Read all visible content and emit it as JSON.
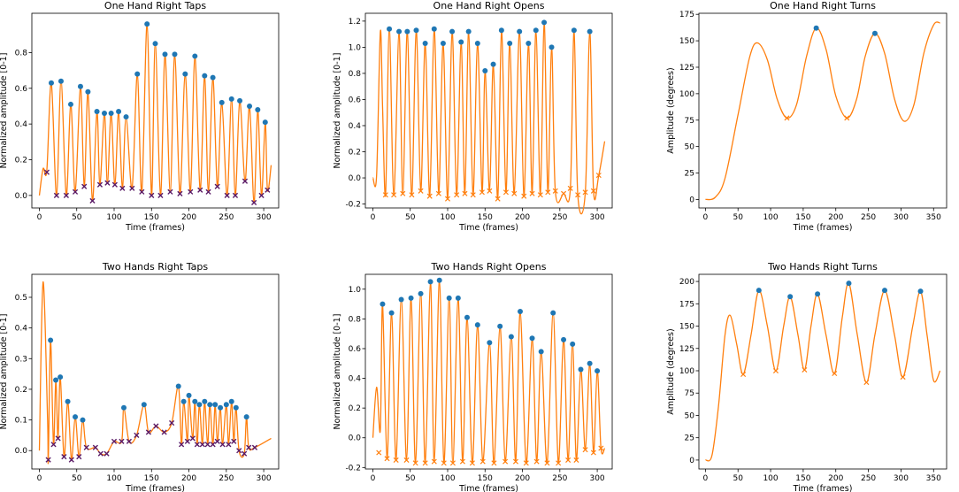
{
  "chart_data": [
    {
      "type": "line",
      "title": "One Hand Right Taps",
      "xlabel": "Time (frames)",
      "ylabel": "Normalized amplitude [0-1]",
      "xlim": [
        -10,
        320
      ],
      "ylim": [
        -0.07,
        1.02
      ],
      "xticks": [
        0,
        50,
        100,
        150,
        200,
        250,
        300
      ],
      "yticks": [
        0.0,
        0.2,
        0.4,
        0.6,
        0.8
      ],
      "ytick_labels": [
        "0.0",
        "0.2",
        "0.4",
        "0.6",
        "0.8"
      ],
      "series": [
        {
          "name": "signal",
          "start": [
            0,
            0.0
          ],
          "end": [
            310,
            0.17
          ],
          "extra_points": [
            [
              5,
              0.15
            ],
            [
              10,
              0.14
            ]
          ]
        }
      ],
      "peaks": {
        "x": [
          16,
          29,
          42,
          55,
          65,
          77,
          87,
          96,
          106,
          116,
          131,
          144,
          155,
          168,
          181,
          195,
          208,
          221,
          232,
          244,
          257,
          268,
          281,
          292,
          302
        ],
        "y": [
          0.63,
          0.64,
          0.51,
          0.61,
          0.58,
          0.47,
          0.46,
          0.46,
          0.47,
          0.44,
          0.68,
          0.96,
          0.85,
          0.79,
          0.79,
          0.68,
          0.78,
          0.67,
          0.66,
          0.52,
          0.54,
          0.53,
          0.5,
          0.48,
          0.41
        ]
      },
      "troughs": {
        "x": [
          10,
          23,
          36,
          48,
          60,
          71,
          81,
          91,
          101,
          111,
          124,
          137,
          150,
          162,
          175,
          188,
          202,
          215,
          226,
          238,
          251,
          262,
          275,
          287,
          297,
          305
        ],
        "y": [
          0.13,
          0.0,
          0.0,
          0.02,
          0.05,
          -0.03,
          0.06,
          0.07,
          0.06,
          0.04,
          0.04,
          0.02,
          0.0,
          0.0,
          0.02,
          0.01,
          0.02,
          0.03,
          0.02,
          0.05,
          0.0,
          0.0,
          0.08,
          -0.04,
          0.0,
          0.03
        ]
      },
      "trough_style": "dark"
    },
    {
      "type": "line",
      "title": "One Hand Right Opens",
      "xlabel": "Time (frames)",
      "ylabel": "Normalized amplitude [0-1]",
      "xlim": [
        -10,
        320
      ],
      "ylim": [
        -0.23,
        1.26
      ],
      "xticks": [
        0,
        50,
        100,
        150,
        200,
        250,
        300
      ],
      "yticks": [
        -0.2,
        0.0,
        0.2,
        0.4,
        0.6,
        0.8,
        1.0,
        1.2
      ],
      "ytick_labels": [
        "-0.2",
        "0.0",
        "0.2",
        "0.4",
        "0.6",
        "0.8",
        "1.0",
        "1.2"
      ],
      "series": [
        {
          "name": "signal",
          "start": [
            0,
            0.0
          ],
          "end": [
            310,
            0.28
          ],
          "extra_points": [
            [
              5,
              0.02
            ],
            [
              10,
              1.12
            ],
            [
              13,
              0.55
            ]
          ]
        }
      ],
      "peaks": {
        "x": [
          22,
          35,
          46,
          58,
          70,
          82,
          94,
          106,
          118,
          128,
          140,
          150,
          161,
          172,
          183,
          196,
          208,
          218,
          229,
          239,
          250,
          259,
          269,
          279,
          290,
          298,
          305
        ],
        "y": [
          1.14,
          1.12,
          1.12,
          1.13,
          1.03,
          1.14,
          1.03,
          1.12,
          1.04,
          1.12,
          1.03,
          0.82,
          0.87,
          1.13,
          1.03,
          1.12,
          1.03,
          1.13,
          1.19,
          1.0,
          0.05,
          0.06,
          1.13,
          0.0,
          1.12,
          -0.1,
          0.02
        ]
      },
      "peak_indices_visible": [
        0,
        1,
        2,
        3,
        4,
        5,
        6,
        7,
        8,
        9,
        10,
        11,
        12,
        13,
        14,
        15,
        16,
        17,
        18,
        19,
        22,
        24
      ],
      "troughs": {
        "x": [
          17,
          28,
          40,
          52,
          64,
          76,
          88,
          100,
          112,
          123,
          134,
          146,
          156,
          167,
          178,
          189,
          202,
          213,
          224,
          234,
          244,
          255,
          264,
          274,
          284,
          295,
          302
        ],
        "y": [
          -0.13,
          -0.13,
          -0.12,
          -0.13,
          -0.1,
          -0.14,
          -0.12,
          -0.16,
          -0.13,
          -0.12,
          -0.13,
          -0.11,
          -0.1,
          -0.16,
          -0.11,
          -0.12,
          -0.14,
          -0.12,
          -0.13,
          -0.11,
          -0.1,
          -0.12,
          -0.08,
          -0.13,
          -0.11,
          -0.1,
          0.02
        ]
      },
      "trough_style": "orange"
    },
    {
      "type": "line",
      "title": "One Hand Right Turns",
      "xlabel": "Time (frames)",
      "ylabel": "Amplitude (degrees)",
      "xlim": [
        -10,
        370
      ],
      "ylim": [
        -8,
        176
      ],
      "xticks": [
        0,
        50,
        100,
        150,
        200,
        250,
        300,
        350
      ],
      "yticks": [
        0,
        25,
        50,
        75,
        100,
        125,
        150,
        175
      ],
      "ytick_labels": [
        "0",
        "25",
        "50",
        "75",
        "100",
        "125",
        "150",
        "175"
      ],
      "series": [
        {
          "name": "signal",
          "knots": [
            [
              0,
              0
            ],
            [
              15,
              2
            ],
            [
              30,
              20
            ],
            [
              50,
              80
            ],
            [
              68,
              135
            ],
            [
              80,
              148
            ],
            [
              95,
              132
            ],
            [
              110,
              95
            ],
            [
              125,
              77
            ],
            [
              140,
              90
            ],
            [
              155,
              135
            ],
            [
              170,
              162
            ],
            [
              185,
              142
            ],
            [
              200,
              98
            ],
            [
              217,
              77
            ],
            [
              232,
              95
            ],
            [
              245,
              135
            ],
            [
              260,
              157
            ],
            [
              275,
              138
            ],
            [
              290,
              95
            ],
            [
              305,
              74
            ],
            [
              320,
              90
            ],
            [
              335,
              138
            ],
            [
              350,
              165
            ],
            [
              360,
              167
            ]
          ]
        }
      ],
      "peaks": {
        "x": [
          170,
          260
        ],
        "y": [
          162,
          157
        ]
      },
      "troughs": {
        "x": [
          125,
          217
        ],
        "y": [
          77,
          77
        ]
      },
      "trough_style": "orange"
    },
    {
      "type": "line",
      "title": "Two Hands Right Taps",
      "xlabel": "Time (frames)",
      "ylabel": "Normalized amplitude [0-1]",
      "xlim": [
        -10,
        320
      ],
      "ylim": [
        -0.06,
        0.575
      ],
      "xticks": [
        0,
        50,
        100,
        150,
        200,
        250,
        300
      ],
      "yticks": [
        0.0,
        0.1,
        0.2,
        0.3,
        0.4,
        0.5
      ],
      "ytick_labels": [
        "0.0",
        "0.1",
        "0.2",
        "0.3",
        "0.4",
        "0.5"
      ],
      "series": [
        {
          "name": "signal",
          "start": [
            0,
            0.0
          ],
          "end": [
            310,
            0.04
          ],
          "extra_points": [
            [
              5,
              0.55
            ],
            [
              11,
              0.1
            ]
          ]
        }
      ],
      "peaks": {
        "x": [
          15,
          22,
          28,
          38,
          48,
          58,
          113,
          140,
          186,
          193,
          200,
          208,
          214,
          221,
          228,
          235,
          242,
          250,
          257,
          263,
          277
        ],
        "y": [
          0.36,
          0.23,
          0.24,
          0.16,
          0.11,
          0.1,
          0.14,
          0.15,
          0.21,
          0.16,
          0.18,
          0.16,
          0.15,
          0.16,
          0.15,
          0.15,
          0.14,
          0.15,
          0.16,
          0.14,
          0.11
        ]
      },
      "troughs": {
        "x": [
          12,
          19,
          25,
          33,
          43,
          53,
          63,
          75,
          82,
          90,
          100,
          110,
          120,
          130,
          146,
          156,
          167,
          177,
          190,
          198,
          205,
          211,
          218,
          225,
          232,
          238,
          245,
          253,
          260,
          267,
          274,
          280,
          288
        ],
        "y": [
          -0.03,
          0.02,
          0.04,
          -0.02,
          -0.03,
          -0.02,
          0.01,
          0.01,
          -0.01,
          -0.01,
          0.03,
          0.03,
          0.03,
          0.05,
          0.06,
          0.08,
          0.06,
          0.09,
          0.02,
          0.03,
          0.04,
          0.02,
          0.02,
          0.02,
          0.02,
          0.03,
          0.02,
          0.02,
          0.03,
          0.0,
          -0.01,
          0.01,
          0.01
        ]
      },
      "trough_style": "dark"
    },
    {
      "type": "line",
      "title": "Two Hands Right Opens",
      "xlabel": "Time (frames)",
      "ylabel": "Normalized amplitude [0-1]",
      "xlim": [
        -10,
        320
      ],
      "ylim": [
        -0.21,
        1.1
      ],
      "xticks": [
        0,
        50,
        100,
        150,
        200,
        250,
        300
      ],
      "yticks": [
        -0.2,
        0.0,
        0.2,
        0.4,
        0.6,
        0.8,
        1.0
      ],
      "ytick_labels": [
        "-0.2",
        "0.0",
        "0.2",
        "0.4",
        "0.6",
        "0.8",
        "1.0"
      ],
      "series": [
        {
          "name": "signal",
          "start": [
            0,
            0.0
          ],
          "end": [
            310,
            -0.07
          ],
          "extra_points": [
            [
              5,
              0.34
            ],
            [
              10,
              0.05
            ]
          ]
        }
      ],
      "peaks": {
        "x": [
          13,
          25,
          38,
          51,
          64,
          77,
          89,
          102,
          114,
          126,
          140,
          156,
          170,
          185,
          197,
          213,
          225,
          241,
          255,
          267,
          278,
          290,
          300
        ],
        "y": [
          0.9,
          0.84,
          0.93,
          0.94,
          0.97,
          1.05,
          1.06,
          0.94,
          0.94,
          0.81,
          0.76,
          0.64,
          0.75,
          0.68,
          0.85,
          0.67,
          0.58,
          0.84,
          0.66,
          0.63,
          0.46,
          0.5,
          0.45
        ]
      },
      "troughs": {
        "x": [
          8,
          19,
          31,
          45,
          57,
          70,
          82,
          95,
          107,
          120,
          133,
          147,
          162,
          177,
          191,
          205,
          219,
          233,
          248,
          261,
          272,
          284,
          295,
          305
        ],
        "y": [
          -0.1,
          -0.14,
          -0.15,
          -0.15,
          -0.17,
          -0.17,
          -0.16,
          -0.17,
          -0.17,
          -0.16,
          -0.17,
          -0.16,
          -0.17,
          -0.16,
          -0.16,
          -0.17,
          -0.16,
          -0.17,
          -0.17,
          -0.15,
          -0.15,
          -0.08,
          -0.1,
          -0.07
        ]
      },
      "trough_style": "orange"
    },
    {
      "type": "line",
      "title": "Two Hands Right Turns",
      "xlabel": "Time (frames)",
      "ylabel": "Amplitude (degrees)",
      "xlim": [
        -10,
        370
      ],
      "ylim": [
        -10,
        208
      ],
      "xticks": [
        0,
        50,
        100,
        150,
        200,
        250,
        300,
        350
      ],
      "yticks": [
        0,
        25,
        50,
        75,
        100,
        125,
        150,
        175,
        200
      ],
      "ytick_labels": [
        "0",
        "25",
        "50",
        "75",
        "100",
        "125",
        "150",
        "175",
        "200"
      ],
      "series": [
        {
          "name": "signal",
          "knots": [
            [
              0,
              0
            ],
            [
              10,
              5
            ],
            [
              20,
              60
            ],
            [
              30,
              140
            ],
            [
              38,
              162
            ],
            [
              48,
              130
            ],
            [
              58,
              96
            ],
            [
              70,
              140
            ],
            [
              82,
              190
            ],
            [
              95,
              150
            ],
            [
              108,
              100
            ],
            [
              120,
              150
            ],
            [
              130,
              183
            ],
            [
              142,
              140
            ],
            [
              152,
              101
            ],
            [
              162,
              150
            ],
            [
              172,
              186
            ],
            [
              185,
              140
            ],
            [
              198,
              97
            ],
            [
              210,
              160
            ],
            [
              220,
              198
            ],
            [
              233,
              140
            ],
            [
              247,
              87
            ],
            [
              260,
              140
            ],
            [
              275,
              190
            ],
            [
              290,
              140
            ],
            [
              303,
              93
            ],
            [
              318,
              150
            ],
            [
              330,
              189
            ],
            [
              340,
              140
            ],
            [
              350,
              89
            ],
            [
              360,
              100
            ]
          ]
        }
      ],
      "peaks": {
        "x": [
          82,
          130,
          172,
          220,
          275,
          330
        ],
        "y": [
          190,
          183,
          186,
          198,
          190,
          189
        ]
      },
      "troughs": {
        "x": [
          58,
          108,
          152,
          198,
          247,
          303
        ],
        "y": [
          96,
          100,
          101,
          97,
          87,
          93
        ]
      },
      "trough_style": "orange"
    }
  ]
}
